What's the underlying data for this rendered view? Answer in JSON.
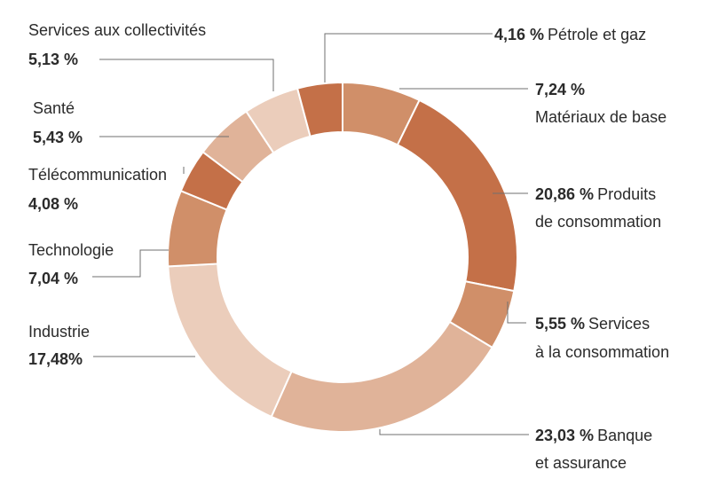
{
  "chart_data": {
    "type": "pie",
    "variant": "donut",
    "title": "",
    "start_angle_deg": 0,
    "direction": "clockwise",
    "slices": [
      {
        "label": "Matériaux de base",
        "value": 7.24,
        "value_text": "7,24 %",
        "color": "#d08f69"
      },
      {
        "label": "Produits de consommation",
        "value": 20.86,
        "value_text": "20,86 %",
        "color": "#c47048"
      },
      {
        "label": "Services à la consommation",
        "value": 5.55,
        "value_text": "5,55 %",
        "color": "#d08f69"
      },
      {
        "label": "Banque et assurance",
        "value": 23.03,
        "value_text": "23,03 %",
        "color": "#e0b399"
      },
      {
        "label": "Industrie",
        "value": 17.48,
        "value_text": "17,48%",
        "color": "#ebcdbb"
      },
      {
        "label": "Technologie",
        "value": 7.04,
        "value_text": "7,04 %",
        "color": "#d08f69"
      },
      {
        "label": "Télécommunication",
        "value": 4.08,
        "value_text": "4,08 %",
        "color": "#c47048"
      },
      {
        "label": "Santé",
        "value": 5.43,
        "value_text": "5,43 %",
        "color": "#e0b399"
      },
      {
        "label": "Services aux collectivités",
        "value": 5.13,
        "value_text": "5,13 %",
        "color": "#ebcdbb"
      },
      {
        "label": "Pétrole et gaz",
        "value": 4.16,
        "value_text": "4,16 %",
        "color": "#c47048"
      }
    ]
  },
  "labels": {
    "petrole": {
      "value": "4,16 %",
      "name": "Pétrole et gaz"
    },
    "materiaux": {
      "value": "7,24 %",
      "name": "Matériaux de base"
    },
    "produits": {
      "value": "20,86 %",
      "name1": "Produits",
      "name2": "de consommation"
    },
    "services_conso": {
      "value": "5,55 %",
      "name1": "Services",
      "name2": "à la consommation"
    },
    "banque": {
      "value": "23,03 %",
      "name1": "Banque",
      "name2": "et assurance"
    },
    "industrie": {
      "name": "Industrie",
      "value": "17,48%"
    },
    "technologie": {
      "name": "Technologie",
      "value": "7,04 %"
    },
    "telecom": {
      "name": "Télécommunication",
      "value": "4,08 %"
    },
    "sante": {
      "name": "Santé",
      "value": "5,43 %"
    },
    "collectivites": {
      "name": "Services aux collectivités",
      "value": "5,13 %"
    }
  }
}
